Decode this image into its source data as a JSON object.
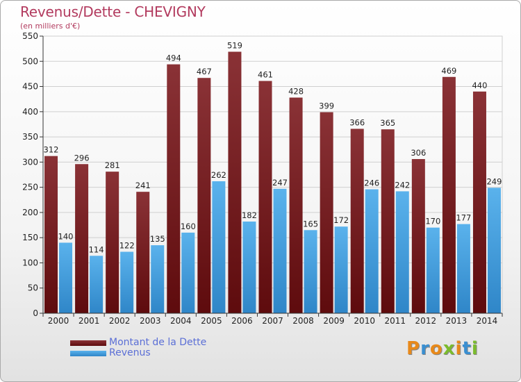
{
  "title": "Revenus/Dette - CHEVIGNY",
  "subtitle": "(en milliers d'€)",
  "legend": [
    {
      "label": "Montant de la Dette",
      "color": "#6b0f12"
    },
    {
      "label": "Revenus",
      "color": "#4aa3e0"
    }
  ],
  "logo": "Proxiti",
  "colors": {
    "debt_top": "#8a3236",
    "debt_bottom": "#5e0b0d",
    "rev_top": "#5ab2ec",
    "rev_bottom": "#2f86c8"
  },
  "chart_data": {
    "type": "bar",
    "title": "Revenus/Dette - CHEVIGNY",
    "ylabel": "(en milliers d'€)",
    "xlabel": "",
    "categories": [
      "2000",
      "2001",
      "2002",
      "2003",
      "2004",
      "2005",
      "2006",
      "2007",
      "2008",
      "2009",
      "2010",
      "2011",
      "2012",
      "2013",
      "2014"
    ],
    "series": [
      {
        "name": "Montant de la Dette",
        "values": [
          312,
          296,
          281,
          241,
          494,
          467,
          519,
          461,
          428,
          399,
          366,
          365,
          306,
          469,
          440
        ]
      },
      {
        "name": "Revenus",
        "values": [
          140,
          114,
          122,
          135,
          160,
          262,
          182,
          247,
          165,
          172,
          246,
          242,
          170,
          177,
          249
        ]
      }
    ],
    "ylim": [
      0,
      550
    ],
    "yticks": [
      0,
      50,
      100,
      150,
      200,
      250,
      300,
      350,
      400,
      450,
      500,
      550
    ],
    "grid": true
  }
}
